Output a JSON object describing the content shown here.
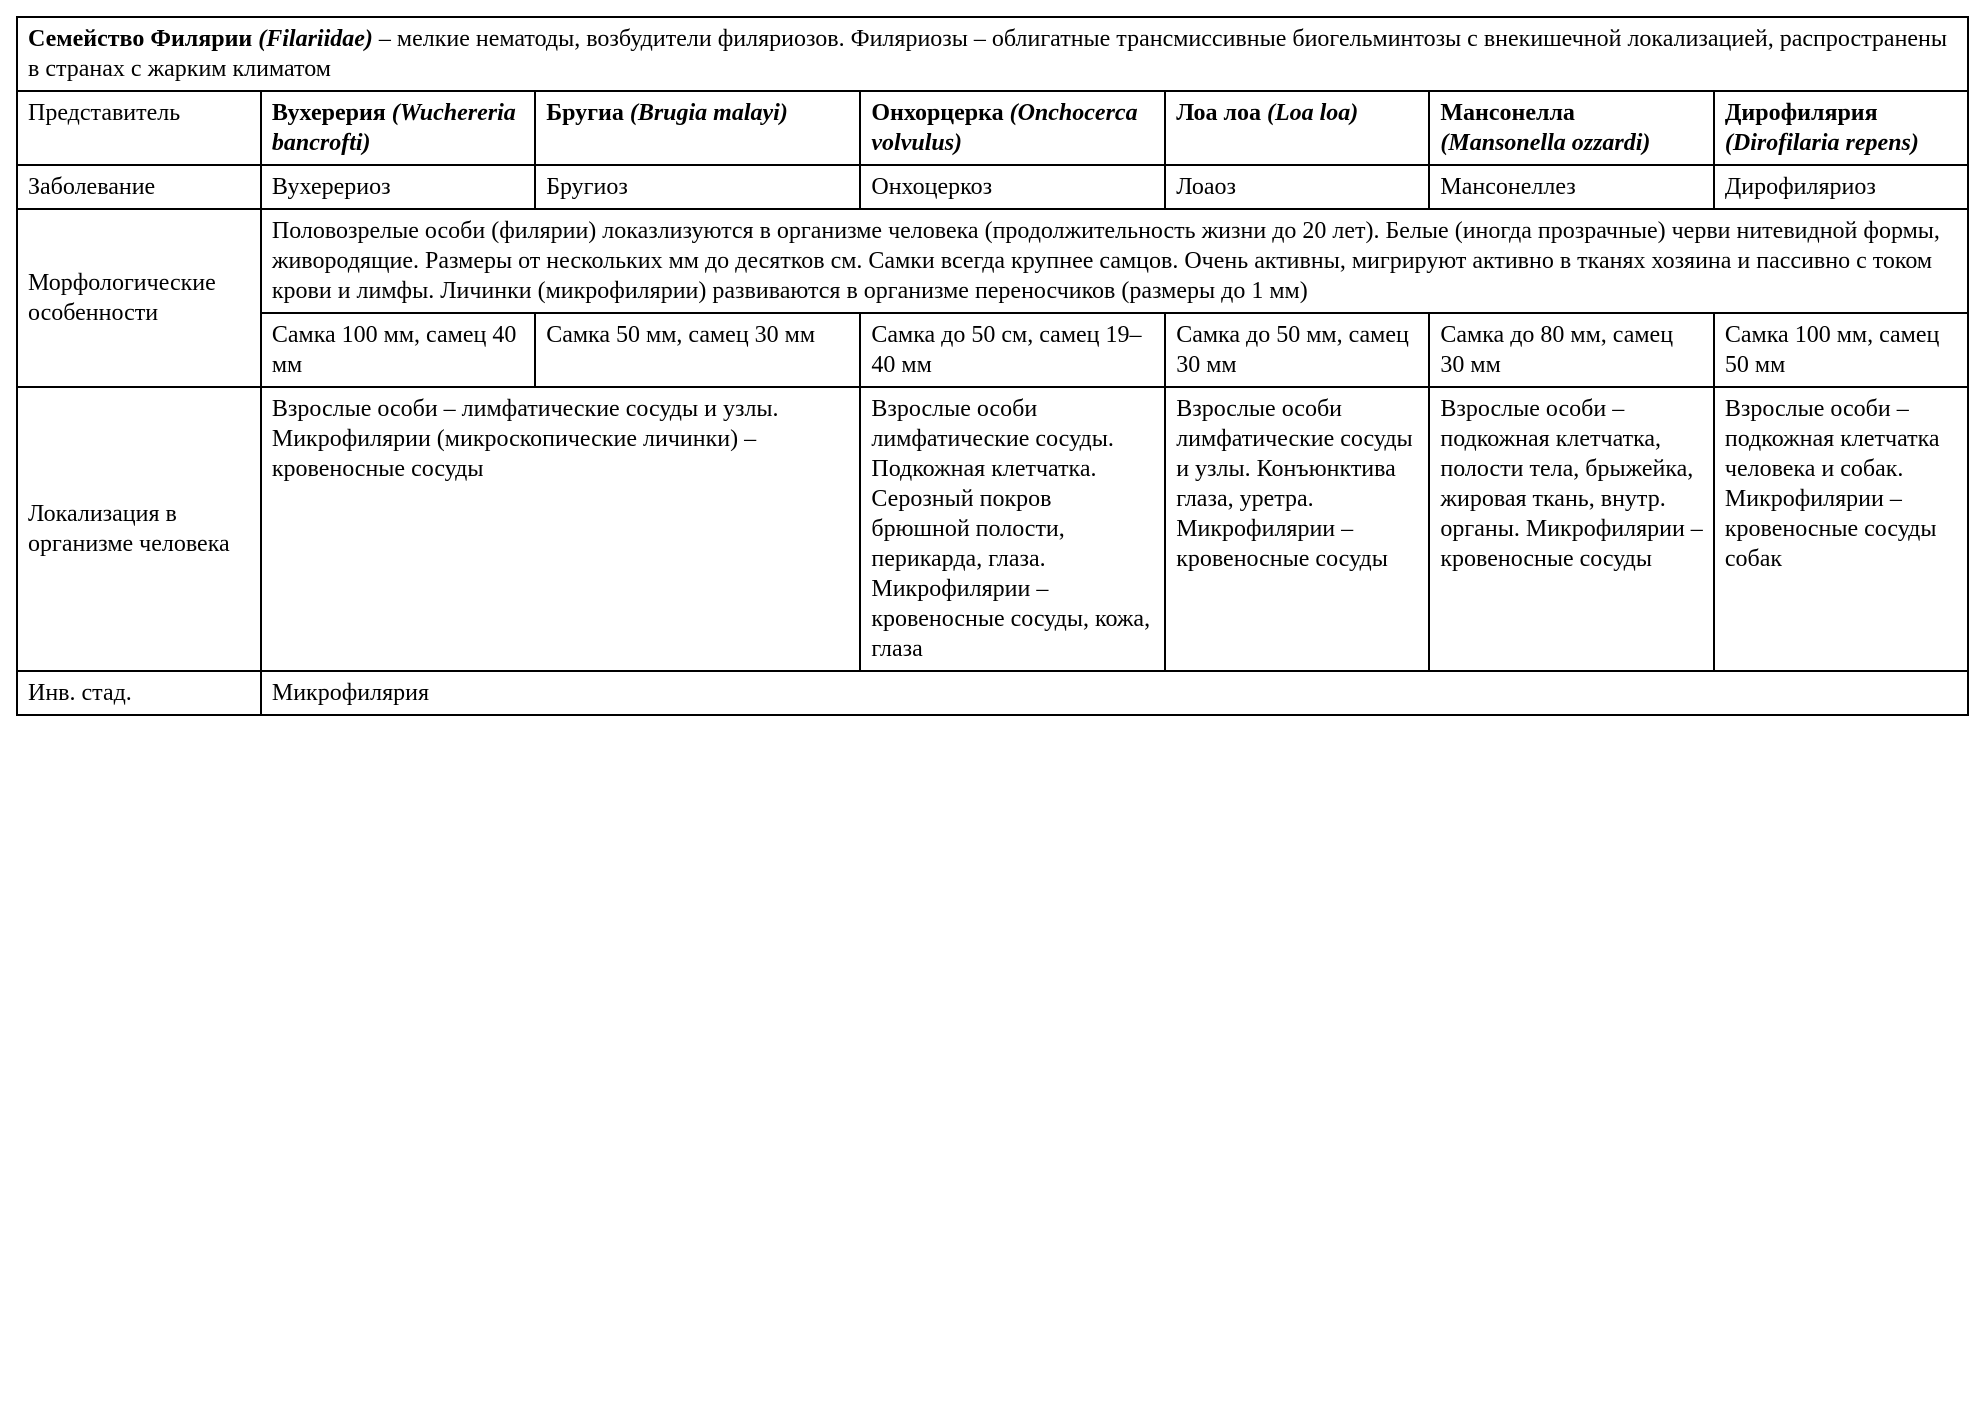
{
  "colors": {
    "background": "#ffffff",
    "border": "#000000",
    "text": "#000000"
  },
  "typography": {
    "font_family": "Georgia, 'Times New Roman', serif",
    "body_fontsize": 24,
    "line_height": 1.25
  },
  "header": {
    "bold_prefix": "Семейство Филярии ",
    "italic": "(Filariidae)",
    "rest": " – мелкие нематоды, возбудители филяриозов. Филяриозы – облигатные трансмиссивные биогельминтозы с внекишечной локализацией, распространены в странах с жарким климатом"
  },
  "row_labels": {
    "representative": "Представитель",
    "disease": "Заболевание",
    "morphology": "Морфологические особенности",
    "localization": "Локализация в организме человека",
    "inv_stage": "Инв. стад."
  },
  "species": [
    {
      "rus": "Вухерерия",
      "latin": "(Wuchereria bancrofti)"
    },
    {
      "rus": "Бругиа",
      "latin": "(Brugia malayi)"
    },
    {
      "rus": "Онхорцерка",
      "latin": "(Onchocerca volvulus)"
    },
    {
      "rus": "Лоа лоа",
      "latin": "(Loa loa)"
    },
    {
      "rus": "Мансонелла",
      "latin": "(Mansonella ozzardi)"
    },
    {
      "rus": "Дирофилярия",
      "latin": "(Dirofilaria repens)"
    }
  ],
  "diseases": [
    "Вухерериоз",
    "Бругиоз",
    "Онхоцеркоз",
    "Лоаоз",
    "Мансонеллез",
    "Дирофиляриоз"
  ],
  "morphology_common": "Половозрелые особи (филярии) локазлизуются в организме человека (продолжительность жизни до 20 лет). Белые (иногда прозрачные) черви нитевидной формы, живородящие. Размеры от нескольких мм до десятков см. Самки всегда крупнее самцов. Очень активны, мигрируют активно в тканях хозяина и пассивно с током крови и лимфы. Личинки (микрофилярии) развиваются в организме переносчиков (размеры до 1 мм)",
  "sizes": [
    "Самка 100 мм, самец 40 мм",
    "Самка 50 мм, самец 30 мм",
    "Самка до 50 см, самец 19–40 мм",
    "Самка до 50 мм, самец 30 мм",
    "Самка до 80 мм, самец 30 мм",
    "Самка 100 мм, самец 50 мм"
  ],
  "localization": {
    "merged_0_1": "Взрослые особи – лимфатические сосуды и узлы. Микрофилярии (микроскопические личинки) – кровеносные сосуды",
    "c2": "Взрослые особи лимфатические сосуды. Подкожная клетчатка. Серозный покров брюшной полости, перикарда, глаза. Микрофилярии – кровеносные сосуды, кожа, глаза",
    "c3": "Взрослые особи лимфатические сосуды и узлы. Конъюнктива глаза, уретра. Микрофилярии – кровеносные сосуды",
    "c4": "Взрослые особи – подкожная клетчатка, полости тела, брыжейка, жировая ткань, внутр. органы. Микрофилярии – кровеносные сосуды",
    "c5": "Взрослые особи – подкожная клетчатка человека и собак. Микрофилярии – кровеносные сосуды собак"
  },
  "inv_stage": "Микрофилярия"
}
